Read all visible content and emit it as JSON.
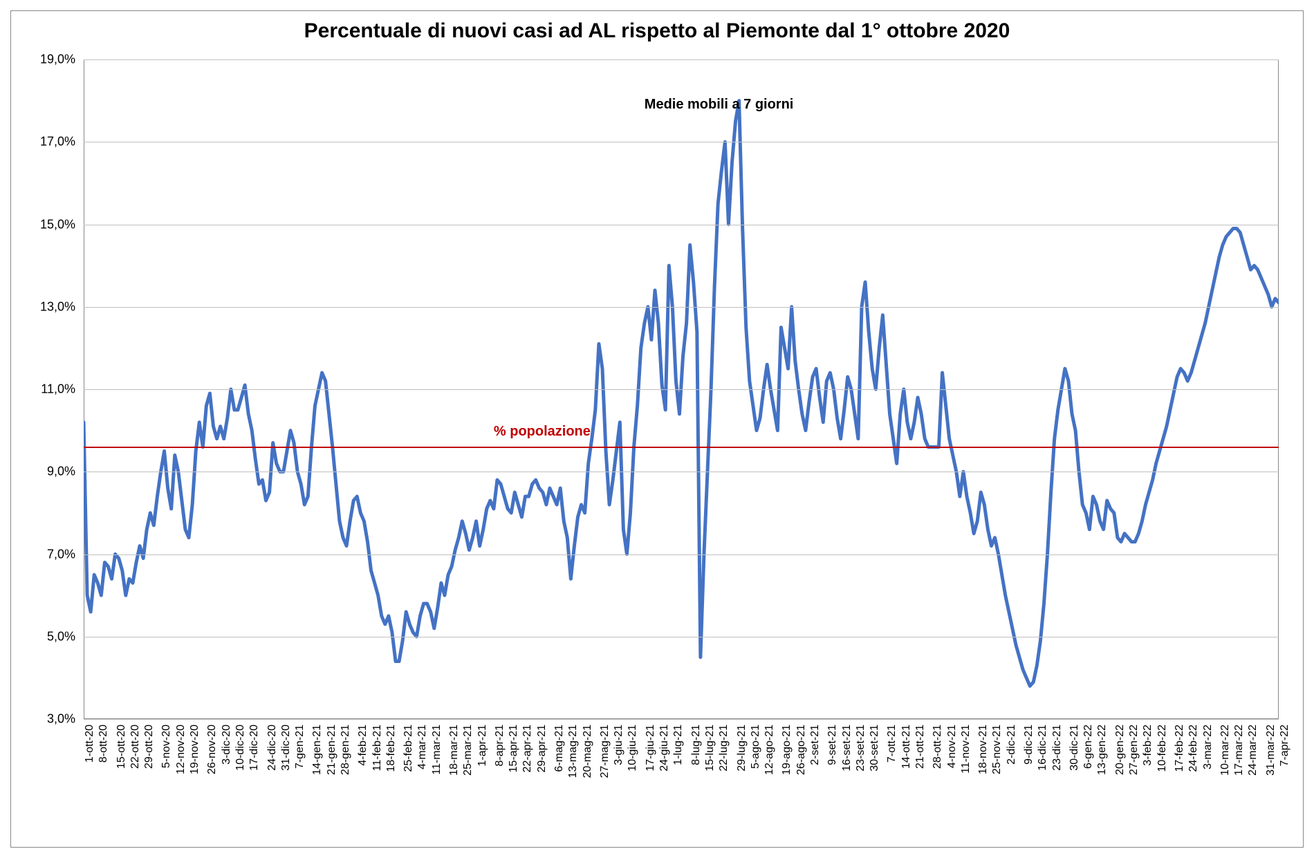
{
  "chart": {
    "type": "line",
    "title": "Percentuale di nuovi casi ad AL rispetto al Piemonte dal 1° ottobre 2020",
    "title_fontsize": 30,
    "title_color": "#000000",
    "background_color": "#ffffff",
    "grid_color": "#c0c0c0",
    "border_color": "#888888",
    "y_axis": {
      "min": 3.0,
      "max": 19.0,
      "tick_step": 2.0,
      "ticks": [
        "3,0%",
        "5,0%",
        "7,0%",
        "9,0%",
        "11,0%",
        "13,0%",
        "15,0%",
        "17,0%",
        "19,0%"
      ],
      "tick_fontsize": 18,
      "tick_color": "#000000"
    },
    "x_axis": {
      "categories": [
        "1-ott-20",
        "8-ott-20",
        "15-ott-20",
        "22-ott-20",
        "29-ott-20",
        "5-nov-20",
        "12-nov-20",
        "19-nov-20",
        "26-nov-20",
        "3-dic-20",
        "10-dic-20",
        "17-dic-20",
        "24-dic-20",
        "31-dic-20",
        "7-gen-21",
        "14-gen-21",
        "21-gen-21",
        "28-gen-21",
        "4-feb-21",
        "11-feb-21",
        "18-feb-21",
        "25-feb-21",
        "4-mar-21",
        "11-mar-21",
        "18-mar-21",
        "25-mar-21",
        "1-apr-21",
        "8-apr-21",
        "15-apr-21",
        "22-apr-21",
        "29-apr-21",
        "6-mag-21",
        "13-mag-21",
        "20-mag-21",
        "27-mag-21",
        "3-giu-21",
        "10-giu-21",
        "17-giu-21",
        "24-giu-21",
        "1-lug-21",
        "8-lug-21",
        "15-lug-21",
        "22-lug-21",
        "29-lug-21",
        "5-ago-21",
        "12-ago-21",
        "19-ago-21",
        "26-ago-21",
        "2-set-21",
        "9-set-21",
        "16-set-21",
        "23-set-21",
        "30-set-21",
        "7-ott-21",
        "14-ott-21",
        "21-ott-21",
        "28-ott-21",
        "4-nov-21",
        "11-nov-21",
        "18-nov-21",
        "25-nov-21",
        "2-dic-21",
        "9-dic-21",
        "16-dic-21",
        "23-dic-21",
        "30-dic-21",
        "6-gen-22",
        "13-gen-22",
        "20-gen-22",
        "27-gen-22",
        "3-feb-22",
        "10-feb-22",
        "17-feb-22",
        "24-feb-22",
        "3-mar-22",
        "10-mar-22",
        "17-mar-22",
        "24-mar-22",
        "31-mar-22",
        "7-apr-22"
      ],
      "tick_fontsize": 16,
      "tick_color": "#000000"
    },
    "reference_line": {
      "value": 9.6,
      "color": "#c00000",
      "width": 2,
      "label": "% popolazione",
      "label_fontsize": 20,
      "label_color": "#c00000",
      "label_x_index": 27
    },
    "series": {
      "name": "Medie mobili a 7 giorni",
      "color": "#4472c4",
      "line_width": 5,
      "annotation_label": "Medie mobili a 7 giorni",
      "annotation_fontsize": 20,
      "annotation_color": "#000000",
      "annotation_x_index": 37,
      "annotation_y": 18.1,
      "values": [
        10.2,
        6.0,
        5.6,
        6.5,
        6.3,
        6.0,
        6.8,
        6.7,
        6.4,
        7.0,
        6.9,
        6.6,
        6.0,
        6.4,
        6.3,
        6.8,
        7.2,
        6.9,
        7.6,
        8.0,
        7.7,
        8.4,
        9.0,
        9.5,
        8.6,
        8.1,
        9.4,
        9.0,
        8.3,
        7.6,
        7.4,
        8.2,
        9.5,
        10.2,
        9.6,
        10.6,
        10.9,
        10.1,
        9.8,
        10.1,
        9.8,
        10.3,
        11.0,
        10.5,
        10.5,
        10.8,
        11.1,
        10.4,
        10.0,
        9.3,
        8.7,
        8.8,
        8.3,
        8.5,
        9.7,
        9.2,
        9.0,
        9.0,
        9.5,
        10.0,
        9.7,
        9.0,
        8.7,
        8.2,
        8.4,
        9.6,
        10.6,
        11.0,
        11.4,
        11.2,
        10.4,
        9.6,
        8.7,
        7.8,
        7.4,
        7.2,
        7.8,
        8.3,
        8.4,
        8.0,
        7.8,
        7.3,
        6.6,
        6.3,
        6.0,
        5.5,
        5.3,
        5.5,
        5.1,
        4.4,
        4.4,
        4.9,
        5.6,
        5.3,
        5.1,
        5.0,
        5.5,
        5.8,
        5.8,
        5.6,
        5.2,
        5.7,
        6.3,
        6.0,
        6.5,
        6.7,
        7.1,
        7.4,
        7.8,
        7.5,
        7.1,
        7.4,
        7.8,
        7.2,
        7.6,
        8.1,
        8.3,
        8.1,
        8.8,
        8.7,
        8.4,
        8.1,
        8.0,
        8.5,
        8.2,
        7.9,
        8.4,
        8.4,
        8.7,
        8.8,
        8.6,
        8.5,
        8.2,
        8.6,
        8.4,
        8.2,
        8.6,
        7.8,
        7.4,
        6.4,
        7.2,
        7.9,
        8.2,
        8.0,
        9.2,
        9.8,
        10.5,
        12.1,
        11.5,
        9.5,
        8.2,
        8.8,
        9.5,
        10.2,
        7.6,
        7.0,
        8.0,
        9.6,
        10.6,
        12.0,
        12.6,
        13.0,
        12.2,
        13.4,
        12.6,
        11.1,
        10.5,
        14.0,
        13.0,
        11.2,
        10.4,
        11.8,
        12.6,
        14.5,
        13.6,
        12.4,
        4.5,
        7.0,
        9.0,
        11.0,
        13.5,
        15.5,
        16.3,
        17.0,
        15.0,
        16.5,
        17.5,
        18.0,
        14.9,
        12.5,
        11.2,
        10.6,
        10.0,
        10.3,
        11.0,
        11.6,
        11.0,
        10.5,
        10.0,
        12.5,
        12.0,
        11.5,
        13.0,
        11.7,
        11.0,
        10.4,
        10.0,
        10.7,
        11.3,
        11.5,
        10.8,
        10.2,
        11.2,
        11.4,
        11.0,
        10.3,
        9.8,
        10.5,
        11.3,
        11.0,
        10.4,
        9.8,
        13.0,
        13.6,
        12.4,
        11.5,
        11.0,
        12.0,
        12.8,
        11.6,
        10.4,
        9.8,
        9.2,
        10.4,
        11.0,
        10.2,
        9.8,
        10.2,
        10.8,
        10.4,
        9.8,
        9.6,
        9.6,
        9.6,
        9.6,
        11.4,
        10.6,
        9.8,
        9.4,
        9.0,
        8.4,
        9.0,
        8.4,
        8.0,
        7.5,
        7.8,
        8.5,
        8.2,
        7.6,
        7.2,
        7.4,
        7.0,
        6.5,
        6.0,
        5.6,
        5.2,
        4.8,
        4.5,
        4.2,
        4.0,
        3.8,
        3.9,
        4.3,
        4.9,
        5.8,
        7.0,
        8.5,
        9.8,
        10.5,
        11.0,
        11.5,
        11.2,
        10.4,
        10.0,
        9.0,
        8.2,
        8.0,
        7.6,
        8.4,
        8.2,
        7.8,
        7.6,
        8.3,
        8.1,
        8.0,
        7.4,
        7.3,
        7.5,
        7.4,
        7.3,
        7.3,
        7.5,
        7.8,
        8.2,
        8.5,
        8.8,
        9.2,
        9.5,
        9.8,
        10.1,
        10.5,
        10.9,
        11.3,
        11.5,
        11.4,
        11.2,
        11.4,
        11.7,
        12.0,
        12.3,
        12.6,
        13.0,
        13.4,
        13.8,
        14.2,
        14.5,
        14.7,
        14.8,
        14.9,
        14.9,
        14.8,
        14.5,
        14.2,
        13.9,
        14.0,
        13.9,
        13.7,
        13.5,
        13.3,
        13.0,
        13.2,
        13.1
      ]
    }
  }
}
